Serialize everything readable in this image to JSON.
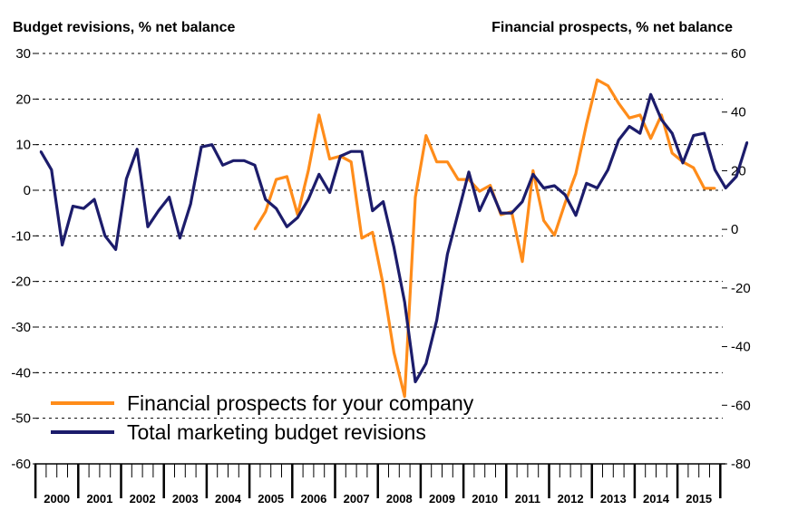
{
  "colors": {
    "orange": "#ff8c1a",
    "navy": "#1c1c6b",
    "grid": "#000000"
  },
  "chart_data": {
    "type": "line",
    "left_axis_title": "Budget revisions, % net balance",
    "right_axis_title": "Financial prospects, % net balance",
    "left_ylim": [
      -60,
      30
    ],
    "left_ticks": [
      "30",
      "20",
      "10",
      "0",
      "-10",
      "-20",
      "-30",
      "-40",
      "-50",
      "-60"
    ],
    "right_ylim": [
      -80,
      60
    ],
    "right_ticks": [
      "60",
      "40",
      "20",
      "0",
      "-20",
      "-40",
      "-60",
      "-80"
    ],
    "years": [
      "2000",
      "2001",
      "2002",
      "2003",
      "2004",
      "2005",
      "2006",
      "2007",
      "2008",
      "2009",
      "2010",
      "2011",
      "2012",
      "2013",
      "2014",
      "2015"
    ],
    "quarters_per_year": 4,
    "first_quarter": "2000 Q1",
    "grid": true,
    "legend_position": "lower-left",
    "series": [
      {
        "name": "Financial prospects for your company",
        "axis": "right",
        "color": "#ff8c1a",
        "start_index": 20,
        "values": [
          0,
          6,
          17,
          18,
          5,
          20,
          39,
          24,
          25,
          23,
          -3,
          -1,
          -19,
          -42,
          -57,
          11,
          32,
          23,
          23,
          17,
          17,
          13,
          15,
          5,
          6,
          -11,
          20,
          3,
          -2,
          9,
          19,
          36,
          51,
          49,
          43,
          38,
          39,
          31,
          39,
          26,
          23,
          21,
          14,
          14
        ]
      },
      {
        "name": "Total marketing budget revisions",
        "axis": "left",
        "color": "#1c1c6b",
        "start_index": 0,
        "values": [
          8.5,
          4.5,
          -12,
          -3.5,
          -4,
          -2,
          -10,
          -13,
          2.5,
          9,
          -8,
          -4.5,
          -1.5,
          -10.5,
          -3,
          9.5,
          10,
          5.5,
          6.5,
          6.5,
          5.5,
          -2,
          -4,
          -8,
          -6,
          -2,
          3.5,
          -0.5,
          7.5,
          8.5,
          8.5,
          -4.5,
          -2.5,
          -12.5,
          -24.5,
          -42,
          -38,
          -28.5,
          -14,
          -5,
          4,
          -4.5,
          0.5,
          -5,
          -5,
          -2.5,
          3.5,
          0.5,
          1,
          -1,
          -5.5,
          1.5,
          0.5,
          4.5,
          11,
          14,
          12.5,
          21,
          15.5,
          12.5,
          6,
          12,
          12.5,
          4.5,
          0.5,
          3,
          10.5
        ]
      }
    ]
  }
}
